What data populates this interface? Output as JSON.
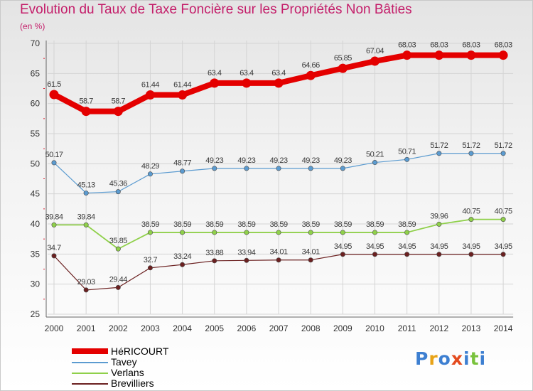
{
  "chart_data": {
    "type": "line",
    "title": "Evolution du Taux de Taxe Foncière sur les Propriétés Non Bâties",
    "ylabel": "(en %)",
    "xlabel": "",
    "ylim": [
      25,
      70
    ],
    "yticks": [
      25,
      30,
      35,
      40,
      45,
      50,
      55,
      60,
      65,
      70
    ],
    "grid": true,
    "categories": [
      "2000",
      "2001",
      "2002",
      "2003",
      "2004",
      "2005",
      "2006",
      "2007",
      "2008",
      "2009",
      "2010",
      "2011",
      "2012",
      "2013",
      "2014"
    ],
    "series": [
      {
        "name": "HéRICOURT",
        "color": "#e40000",
        "values": [
          61.5,
          58.7,
          58.7,
          61.44,
          61.44,
          63.4,
          63.4,
          63.4,
          64.66,
          65.85,
          67.04,
          68.03,
          68.03,
          68.03,
          68.03
        ],
        "labels": [
          "61.5",
          "58.7",
          "58.7",
          "61.44",
          "61.44",
          "63.4",
          "63.4",
          "63.4",
          "64.66",
          "65.85",
          "67.04",
          "68.03",
          "68.03",
          "68.03",
          "68.03"
        ]
      },
      {
        "name": "Tavey",
        "color": "#5b9bd0",
        "values": [
          50.17,
          45.13,
          45.36,
          48.29,
          48.77,
          49.23,
          49.23,
          49.23,
          49.23,
          49.23,
          50.21,
          50.71,
          51.72,
          51.72,
          51.72
        ],
        "labels": [
          "50.17",
          "45.13",
          "45.36",
          "48.29",
          "48.77",
          "49.23",
          "49.23",
          "49.23",
          "49.23",
          "49.23",
          "50.21",
          "50.71",
          "51.72",
          "51.72",
          "51.72"
        ]
      },
      {
        "name": "Verlans",
        "color": "#8fd04a",
        "values": [
          39.84,
          39.84,
          35.85,
          38.59,
          38.59,
          38.59,
          38.59,
          38.59,
          38.59,
          38.59,
          38.59,
          38.59,
          39.96,
          40.75,
          40.75
        ],
        "labels": [
          "39.84",
          "39.84",
          "35.85",
          "38.59",
          "38.59",
          "38.59",
          "38.59",
          "38.59",
          "38.59",
          "38.59",
          "38.59",
          "38.59",
          "39.96",
          "40.75",
          "40.75"
        ]
      },
      {
        "name": "Brevilliers",
        "color": "#6b2020",
        "values": [
          34.7,
          29.03,
          29.44,
          32.7,
          33.24,
          33.88,
          33.94,
          34.01,
          34.01,
          34.95,
          34.95,
          34.95,
          34.95,
          34.95,
          34.95
        ],
        "labels": [
          "34.7",
          "29.03",
          "29.44",
          "32.7",
          "33.24",
          "33.88",
          "33.94",
          "34.01",
          "34.01",
          "34.95",
          "34.95",
          "34.95",
          "34.95",
          "34.95",
          "34.95"
        ]
      }
    ],
    "legend_position": "bottom-left"
  },
  "brand": {
    "text": "Proxiti",
    "colors": [
      "#3d7fd1",
      "#e8a317",
      "#3d7fd1",
      "#e44b1f",
      "#3d7fd1",
      "#79c23c",
      "#3d7fd1"
    ]
  }
}
